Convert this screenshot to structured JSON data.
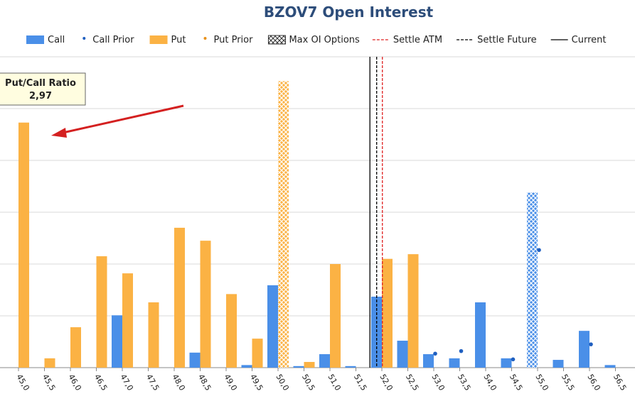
{
  "chart_data": {
    "type": "bar",
    "title": "BZOV7 Open Interest",
    "categories": [
      "45,0",
      "45,5",
      "46,0",
      "46,5",
      "47,0",
      "47,5",
      "48,0",
      "48,5",
      "49,0",
      "49,5",
      "50,0",
      "50,5",
      "51,0",
      "51,5",
      "52,0",
      "52,5",
      "53,0",
      "53,5",
      "54,0",
      "54,5",
      "55,0",
      "55,5",
      "56,0",
      "56,5"
    ],
    "series": [
      {
        "name": "Call",
        "color": "#4a8fe8",
        "mark": "bar",
        "hatched_index": 20,
        "values": [
          0,
          0,
          0,
          0,
          1.01,
          0,
          0,
          0.29,
          0,
          0.05,
          1.59,
          0.03,
          0.26,
          0.03,
          1.37,
          0.52,
          0.26,
          0.18,
          1.26,
          0.18,
          3.38,
          0.15,
          0.71,
          0.05
        ]
      },
      {
        "name": "Call Prior",
        "color": "#1f5fc0",
        "mark": "dot",
        "values": [
          null,
          null,
          null,
          null,
          null,
          null,
          null,
          null,
          null,
          null,
          null,
          null,
          null,
          null,
          null,
          null,
          0.27,
          0.32,
          null,
          0.16,
          2.27,
          null,
          0.45,
          null
        ]
      },
      {
        "name": "Put",
        "color": "#fbb244",
        "mark": "bar",
        "hatched_index": 10,
        "values": [
          4.73,
          0.18,
          0.78,
          2.15,
          1.82,
          1.26,
          2.7,
          2.45,
          1.42,
          0.56,
          5.53,
          0.11,
          2.0,
          0,
          2.1,
          2.19,
          0,
          0,
          0,
          0,
          0,
          0,
          0,
          0
        ]
      },
      {
        "name": "Put Prior",
        "color": "#e8901a",
        "mark": "dot",
        "values": [
          null,
          null,
          null,
          null,
          null,
          null,
          null,
          null,
          null,
          null,
          null,
          null,
          null,
          null,
          null,
          null,
          null,
          null,
          null,
          null,
          null,
          null,
          null,
          null
        ]
      }
    ],
    "max_oi_label": "Max OI Options",
    "reference_lines": [
      {
        "name": "Settle ATM",
        "color": "#e02020",
        "dashed": true,
        "x": 52.01
      },
      {
        "name": "Settle Future",
        "color": "#000000",
        "dashed": true,
        "x": 51.9
      },
      {
        "name": "Current",
        "color": "#000000",
        "dashed": false,
        "x": 51.77
      }
    ],
    "annotation": {
      "title": "Put/Call Ratio",
      "text": "2,97"
    },
    "ylim": [
      0,
      6
    ],
    "yticks": [
      0,
      1,
      2,
      3,
      4,
      5,
      6
    ],
    "grid": true
  }
}
